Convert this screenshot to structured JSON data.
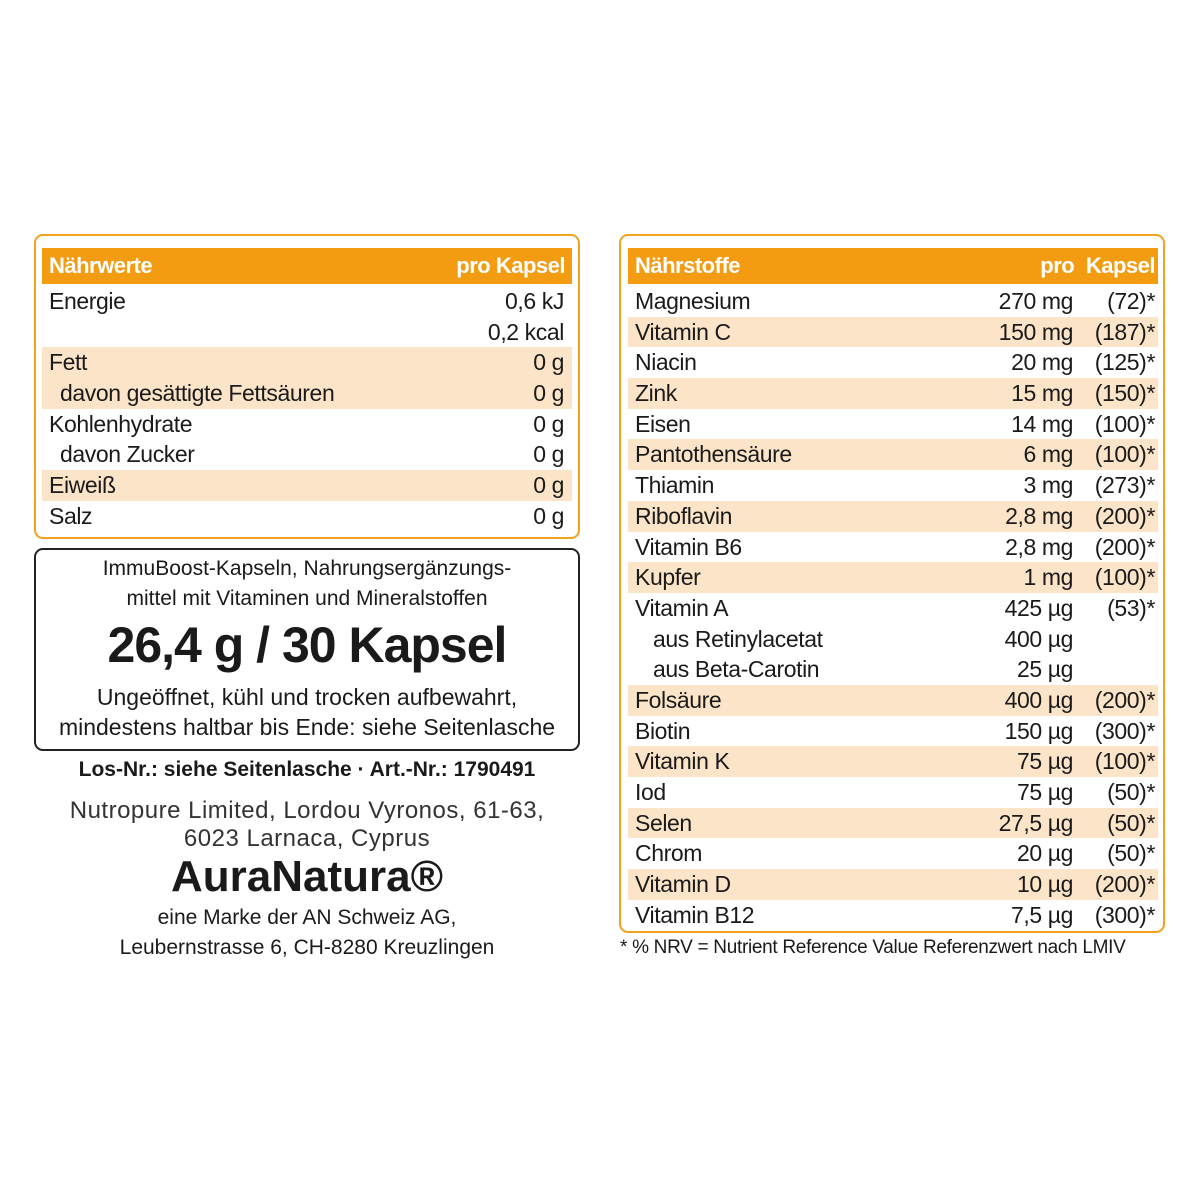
{
  "left_table": {
    "header": "Nährwerte",
    "header_right": "pro Kapsel",
    "accent": "#f39c12",
    "stripe": "#fbe4c8",
    "rows": [
      {
        "label": "Energie",
        "value": "0,6 kJ",
        "shade": false,
        "indent": false
      },
      {
        "label": "",
        "value": "0,2 kcal",
        "shade": false,
        "indent": false
      },
      {
        "label": "Fett",
        "value": "0 g",
        "shade": true,
        "indent": false
      },
      {
        "label": "davon gesättigte Fettsäuren",
        "value": "0 g",
        "shade": true,
        "indent": true
      },
      {
        "label": "Kohlenhydrate",
        "value": "0 g",
        "shade": false,
        "indent": false
      },
      {
        "label": "davon Zucker",
        "value": "0 g",
        "shade": false,
        "indent": true
      },
      {
        "label": "Eiweiß",
        "value": "0 g",
        "shade": true,
        "indent": false
      },
      {
        "label": "Salz",
        "value": "0 g",
        "shade": false,
        "indent": false
      }
    ]
  },
  "product_box": {
    "line1": "ImmuBoost-Kapseln, Nahrungsergänzungs-",
    "line2": "mittel mit Vitaminen und Mineralstoffen",
    "net": "26,4 g / 30 Kapsel",
    "storage1": "Ungeöffnet, kühl und trocken aufbewahrt,",
    "storage2": "mindestens haltbar bis Ende: siehe Seitenlasche"
  },
  "lot_line": "Los-Nr.: siehe Seitenlasche · Art.-Nr.: 1790491",
  "manufacturer": {
    "line1": "Nutropure Limited, Lordou Vyronos, 61-63,",
    "line2": "6023 Larnaca, Cyprus"
  },
  "brand": {
    "name": "AuraNatura®",
    "line1": "eine Marke der AN Schweiz AG,",
    "line2": "Leubernstrasse 6, CH-8280 Kreuzlingen"
  },
  "right_table": {
    "header": "Nährstoffe",
    "header_right": "pro Kapsel",
    "rows": [
      {
        "label": "Magnesium",
        "amount": "270 mg",
        "nrv": "(72)*",
        "shade": false,
        "indent": false
      },
      {
        "label": "Vitamin C",
        "amount": "150 mg",
        "nrv": "(187)*",
        "shade": true,
        "indent": false
      },
      {
        "label": "Niacin",
        "amount": "20 mg",
        "nrv": "(125)*",
        "shade": false,
        "indent": false
      },
      {
        "label": "Zink",
        "amount": "15 mg",
        "nrv": "(150)*",
        "shade": true,
        "indent": false
      },
      {
        "label": "Eisen",
        "amount": "14 mg",
        "nrv": "(100)*",
        "shade": false,
        "indent": false
      },
      {
        "label": "Pantothensäure",
        "amount": "6 mg",
        "nrv": "(100)*",
        "shade": true,
        "indent": false
      },
      {
        "label": "Thiamin",
        "amount": "3 mg",
        "nrv": "(273)*",
        "shade": false,
        "indent": false
      },
      {
        "label": "Riboflavin",
        "amount": "2,8 mg",
        "nrv": "(200)*",
        "shade": true,
        "indent": false
      },
      {
        "label": "Vitamin B6",
        "amount": "2,8 mg",
        "nrv": "(200)*",
        "shade": false,
        "indent": false
      },
      {
        "label": "Kupfer",
        "amount": "1 mg",
        "nrv": "(100)*",
        "shade": true,
        "indent": false
      },
      {
        "label": "Vitamin A",
        "amount": "425 µg",
        "nrv": "(53)*",
        "shade": false,
        "indent": false
      },
      {
        "label": "aus Retinylacetat",
        "amount": "400 µg",
        "nrv": "",
        "shade": false,
        "indent": true
      },
      {
        "label": "aus Beta-Carotin",
        "amount": "25 µg",
        "nrv": "",
        "shade": false,
        "indent": true
      },
      {
        "label": "Folsäure",
        "amount": "400 µg",
        "nrv": "(200)*",
        "shade": true,
        "indent": false
      },
      {
        "label": "Biotin",
        "amount": "150 µg",
        "nrv": "(300)*",
        "shade": false,
        "indent": false
      },
      {
        "label": "Vitamin K",
        "amount": "75 µg",
        "nrv": "(100)*",
        "shade": true,
        "indent": false
      },
      {
        "label": "Iod",
        "amount": "75 µg",
        "nrv": "(50)*",
        "shade": false,
        "indent": false
      },
      {
        "label": "Selen",
        "amount": "27,5 µg",
        "nrv": "(50)*",
        "shade": true,
        "indent": false
      },
      {
        "label": "Chrom",
        "amount": "20 µg",
        "nrv": "(50)*",
        "shade": false,
        "indent": false
      },
      {
        "label": "Vitamin D",
        "amount": "10 µg",
        "nrv": "(200)*",
        "shade": true,
        "indent": false
      },
      {
        "label": "Vitamin B12",
        "amount": "7,5 µg",
        "nrv": "(300)*",
        "shade": false,
        "indent": false
      }
    ]
  },
  "footnote": "* % NRV = Nutrient Reference Value Referenzwert nach LMIV"
}
